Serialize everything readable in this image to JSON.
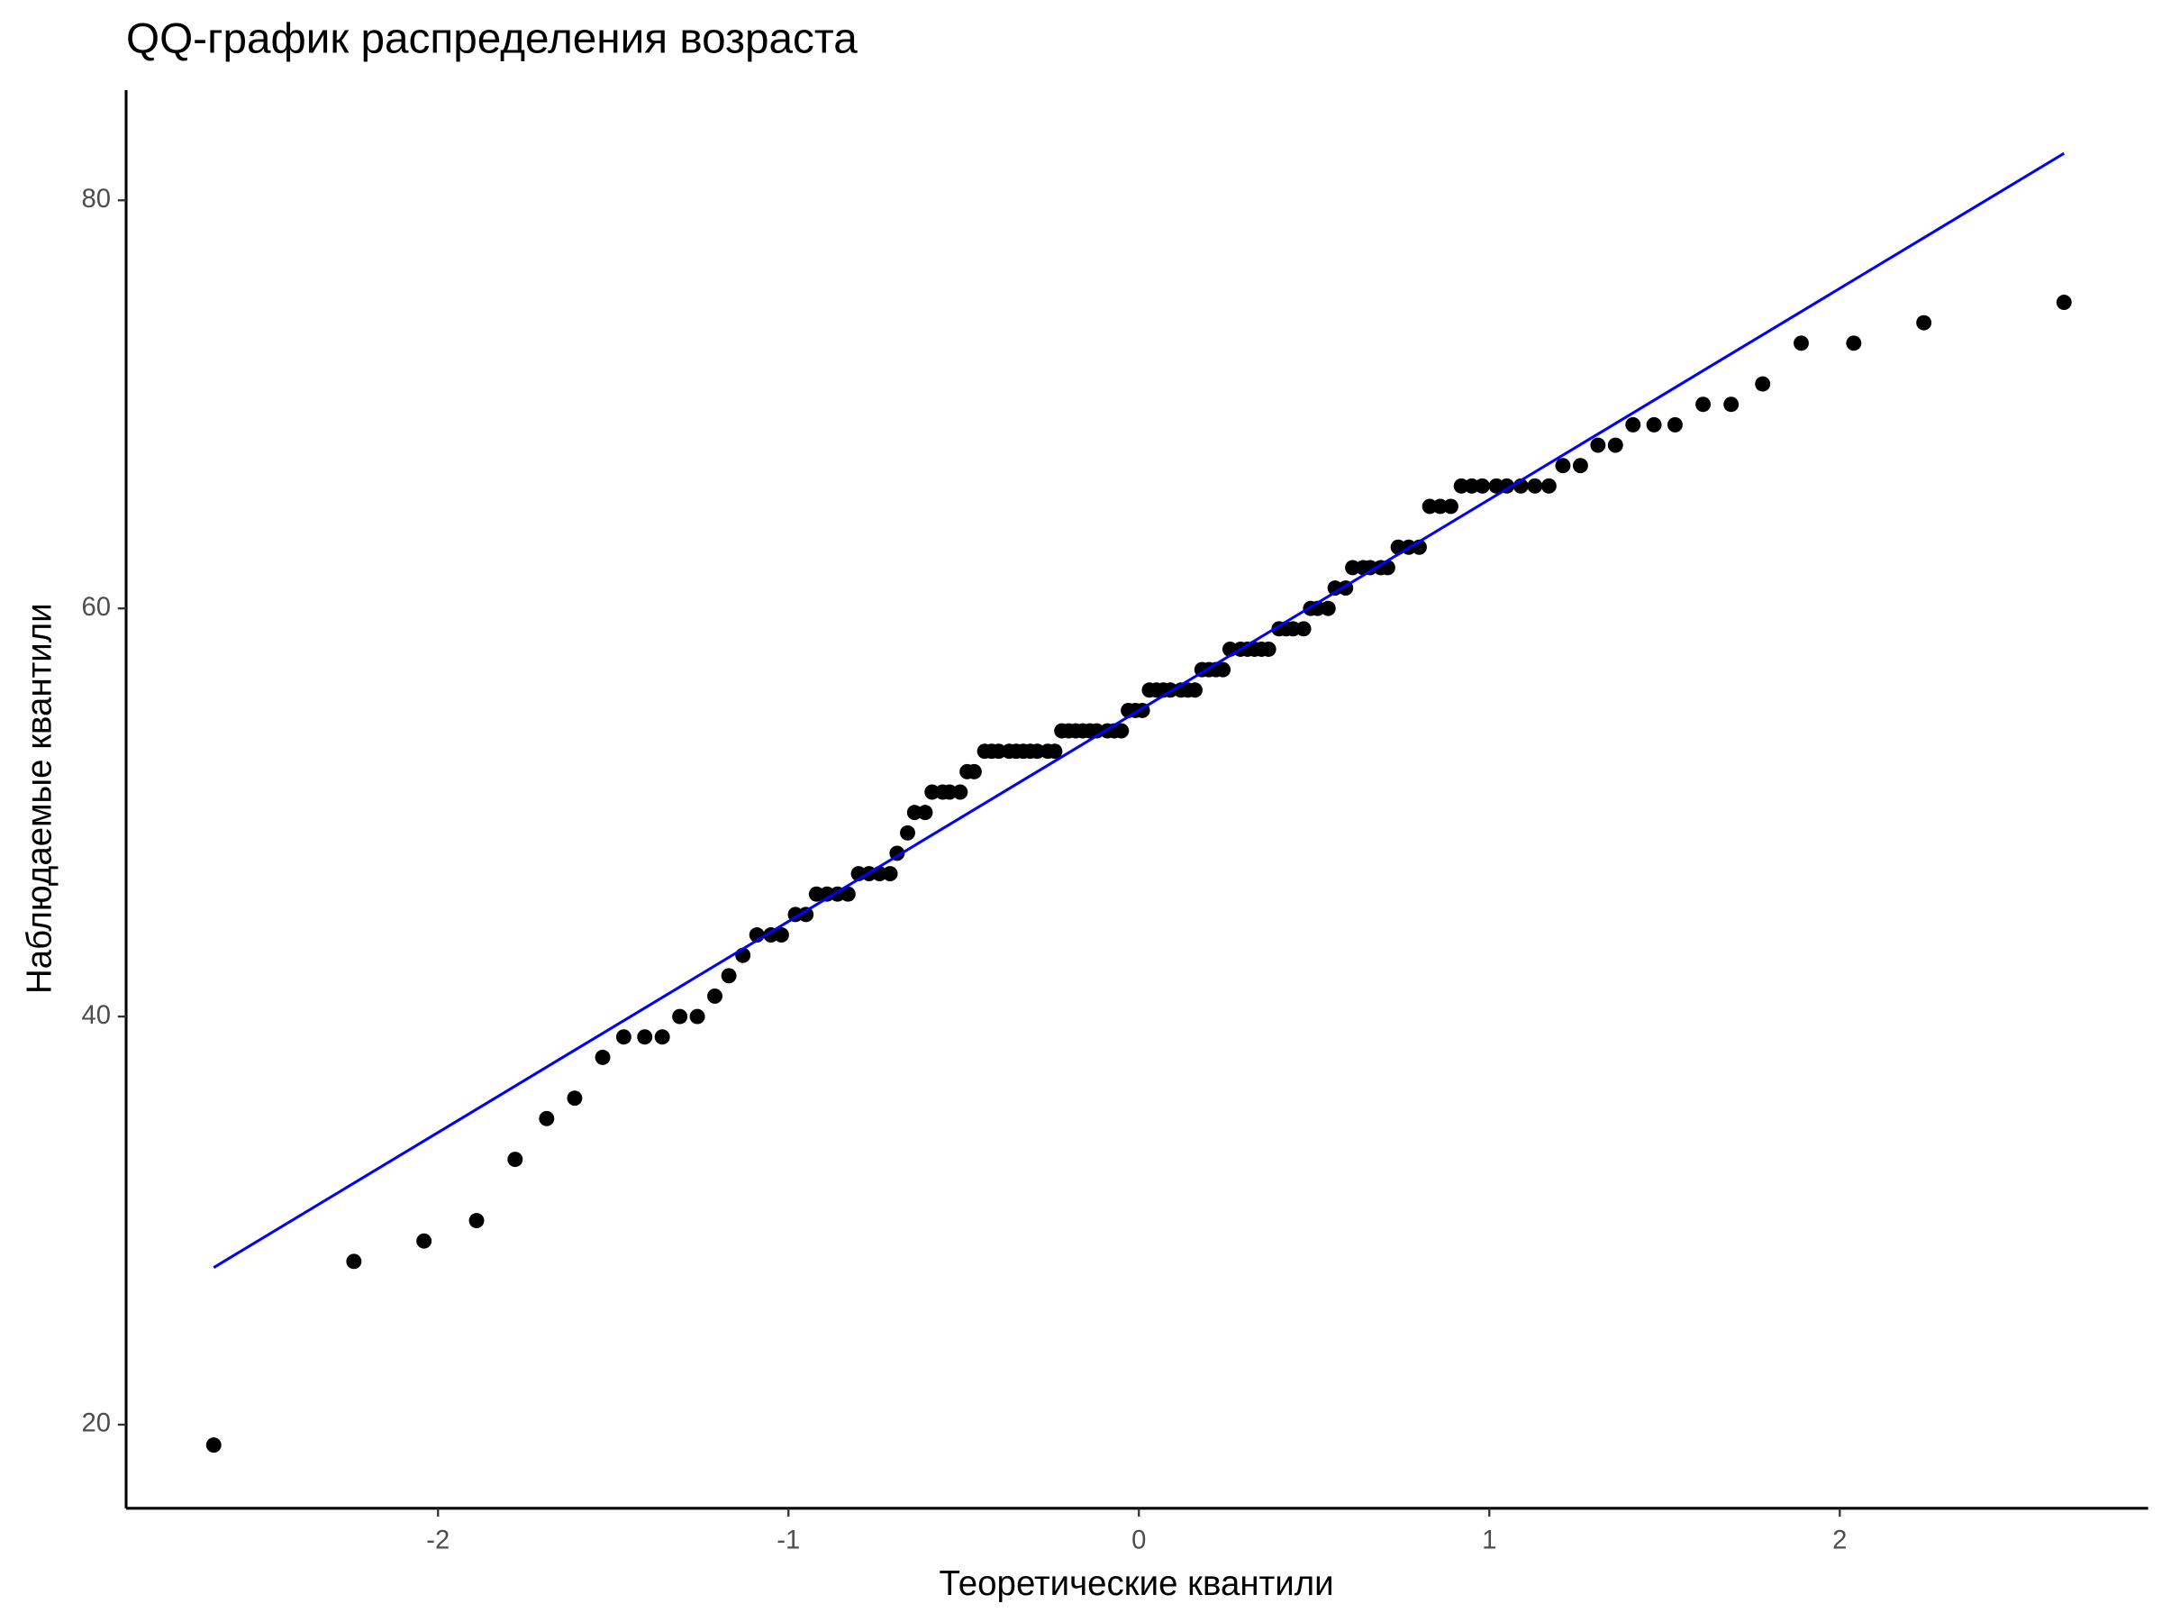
{
  "chart_data": {
    "type": "scatter",
    "title": "QQ-график распределения возраста",
    "x_label": "Теоретические квантили",
    "y_label": "Наблюдаемые квантили",
    "color": "#000000",
    "x": [
      -2.64,
      -2.24,
      -2.04,
      -1.89,
      -1.78,
      -1.69,
      -1.61,
      -1.53,
      -1.47,
      -1.41,
      -1.36,
      -1.31,
      -1.26,
      -1.21,
      -1.17,
      -1.13,
      -1.09,
      -1.05,
      -1.02,
      -0.98,
      -0.95,
      -0.92,
      -0.89,
      -0.86,
      -0.83,
      -0.8,
      -0.77,
      -0.74,
      -0.71,
      -0.69,
      -0.66,
      -0.64,
      -0.61,
      -0.59,
      -0.56,
      -0.54,
      -0.51,
      -0.49,
      -0.47,
      -0.44,
      -0.42,
      -0.4,
      -0.37,
      -0.35,
      -0.33,
      -0.31,
      -0.29,
      -0.26,
      -0.24,
      -0.22,
      -0.2,
      -0.18,
      -0.16,
      -0.14,
      -0.12,
      -0.09,
      -0.07,
      -0.05,
      -0.03,
      -0.01,
      0.01,
      0.03,
      0.05,
      0.07,
      0.09,
      0.12,
      0.14,
      0.16,
      0.18,
      0.2,
      0.22,
      0.24,
      0.26,
      0.29,
      0.31,
      0.33,
      0.35,
      0.37,
      0.4,
      0.42,
      0.44,
      0.47,
      0.49,
      0.51,
      0.54,
      0.56,
      0.59,
      0.61,
      0.64,
      0.66,
      0.69,
      0.71,
      0.74,
      0.77,
      0.8,
      0.83,
      0.86,
      0.89,
      0.92,
      0.95,
      0.98,
      1.02,
      1.05,
      1.09,
      1.13,
      1.17,
      1.21,
      1.26,
      1.31,
      1.36,
      1.41,
      1.47,
      1.53,
      1.61,
      1.69,
      1.78,
      1.89,
      2.04,
      2.24,
      2.64
    ],
    "values": [
      19,
      28,
      29,
      30,
      33,
      35,
      36,
      38,
      39,
      39,
      39,
      40,
      40,
      41,
      42,
      43,
      44,
      44,
      44,
      45,
      45,
      46,
      46,
      46,
      46,
      47,
      47,
      47,
      47,
      48,
      49,
      50,
      50,
      51,
      51,
      51,
      51,
      52,
      52,
      53,
      53,
      53,
      53,
      53,
      53,
      53,
      53,
      53,
      53,
      54,
      54,
      54,
      54,
      54,
      54,
      54,
      54,
      54,
      55,
      55,
      55,
      56,
      56,
      56,
      56,
      56,
      56,
      56,
      57,
      57,
      57,
      57,
      58,
      58,
      58,
      58,
      58,
      58,
      59,
      59,
      59,
      59,
      60,
      60,
      60,
      61,
      61,
      62,
      62,
      62,
      62,
      62,
      63,
      63,
      63,
      65,
      65,
      65,
      66,
      66,
      66,
      66,
      66,
      66,
      66,
      66,
      67,
      67,
      68,
      68,
      69,
      69,
      69,
      70,
      70,
      71,
      73,
      73,
      74,
      75
    ],
    "line": {
      "color": "#0000ff",
      "x": [
        -2.64,
        2.64
      ],
      "values": [
        27.7,
        82.3
      ]
    },
    "xlim": [
      -2.89,
      2.88
    ],
    "ylim": [
      15.9,
      85.4
    ],
    "xticks": [
      -2,
      -1,
      0,
      1,
      2
    ],
    "yticks": [
      20,
      40,
      60,
      80
    ],
    "grid": false
  }
}
